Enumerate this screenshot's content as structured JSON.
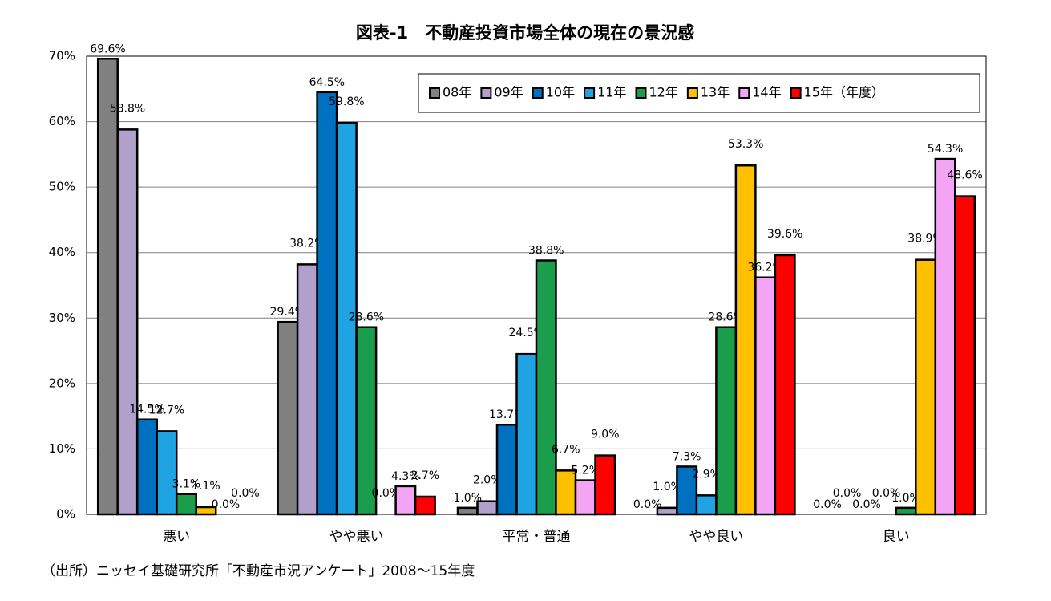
{
  "chart_data": {
    "type": "bar",
    "title": "図表-1　不動産投資市場全体の現在の景況感",
    "footnote": "（出所）ニッセイ基礎研究所「不動産市況アンケート」2008～15年度",
    "categories": [
      "悪い",
      "やや悪い",
      "平常・普通",
      "やや良い",
      "良い"
    ],
    "series": [
      {
        "name": "08年",
        "color": "#808080",
        "values": [
          69.6,
          29.4,
          1.0,
          0.0,
          0.0
        ],
        "value_labels": [
          "69.6%",
          "29.4%",
          "1.0%",
          "0.0%",
          "0.0%"
        ]
      },
      {
        "name": "09年",
        "color": "#b1a0cb",
        "values": [
          58.8,
          38.2,
          2.0,
          1.0,
          0.0
        ],
        "value_labels": [
          "58.8%",
          "38.2%",
          "2.0%",
          "1.0%",
          "0.0%"
        ]
      },
      {
        "name": "10年",
        "color": "#0070c0",
        "values": [
          14.5,
          64.5,
          13.7,
          7.3,
          0.0
        ],
        "value_labels": [
          "14.5%",
          "64.5%",
          "13.7%",
          "7.3%",
          "0.0%"
        ]
      },
      {
        "name": "11年",
        "color": "#1fa3e3",
        "values": [
          12.7,
          59.8,
          24.5,
          2.9,
          0.0
        ],
        "value_labels": [
          "12.7%",
          "59.8%",
          "24.5%",
          "2.9%",
          "0.0%"
        ]
      },
      {
        "name": "12年",
        "color": "#1b9e4b",
        "values": [
          3.1,
          28.6,
          38.8,
          28.6,
          1.0
        ],
        "value_labels": [
          "3.1%",
          "28.6%",
          "38.8%",
          "28.6%",
          "1.0%"
        ]
      },
      {
        "name": "13年",
        "color": "#ffc000",
        "values": [
          1.1,
          0.0,
          6.7,
          53.3,
          38.9
        ],
        "value_labels": [
          "1.1%",
          "0.0%",
          "6.7%",
          "53.3%",
          "38.9%"
        ]
      },
      {
        "name": "14年",
        "color": "#f4a4f4",
        "values": [
          0.0,
          4.3,
          5.2,
          36.2,
          54.3
        ],
        "value_labels": [
          "0.0%",
          "4.3%",
          "5.2%",
          "36.2%",
          "54.3%"
        ]
      },
      {
        "name": "15年（年度）",
        "color": "#ff0000",
        "values": [
          0.0,
          2.7,
          9.0,
          39.6,
          48.6
        ],
        "value_labels": [
          "0.0%",
          "2.7%",
          "9.0%",
          "39.6%",
          "48.6%"
        ]
      }
    ],
    "ylim": [
      0,
      70
    ],
    "yticks": [
      {
        "value": 0,
        "label": "0%"
      },
      {
        "value": 10,
        "label": "10%"
      },
      {
        "value": 20,
        "label": "20%"
      },
      {
        "value": 30,
        "label": "30%"
      },
      {
        "value": 40,
        "label": "40%"
      },
      {
        "value": 50,
        "label": "50%"
      },
      {
        "value": 60,
        "label": "60%"
      },
      {
        "value": 70,
        "label": "70%"
      }
    ],
    "grid": true,
    "legend": "top-right"
  }
}
